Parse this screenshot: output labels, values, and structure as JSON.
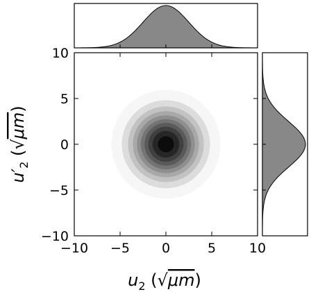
{
  "chart_data": {
    "type": "joint-density",
    "main": {
      "kind": "filled-contour",
      "distribution": "bivariate-gaussian",
      "center": [
        0,
        0
      ],
      "sigma": [
        2.5,
        2.5
      ],
      "levels": 10,
      "colormap": "greys",
      "xlim": [
        -10,
        10
      ],
      "ylim": [
        -10,
        10
      ],
      "xticks": [
        -10,
        -5,
        0,
        5,
        10
      ],
      "yticks": [
        -10,
        -5,
        0,
        5,
        10
      ],
      "xtick_labels": [
        "−10",
        "−5",
        "0",
        "5",
        "10"
      ],
      "ytick_labels": [
        "−10",
        "−5",
        "0",
        "5",
        "10"
      ],
      "xlabel": {
        "var": "u",
        "sub": "2",
        "prime": "",
        "unit": "μm"
      },
      "ylabel": {
        "var": "u",
        "sub": "2",
        "prime": "′",
        "unit": "μm"
      }
    },
    "top_marginal": {
      "kind": "density",
      "orientation": "vertical",
      "mean": 0,
      "sigma": 2.5,
      "fill": "#888888",
      "xlim": [
        -10,
        10
      ]
    },
    "right_marginal": {
      "kind": "density",
      "orientation": "horizontal",
      "mean": 0,
      "sigma": 2.5,
      "fill": "#888888",
      "ylim": [
        -10,
        10
      ]
    }
  }
}
